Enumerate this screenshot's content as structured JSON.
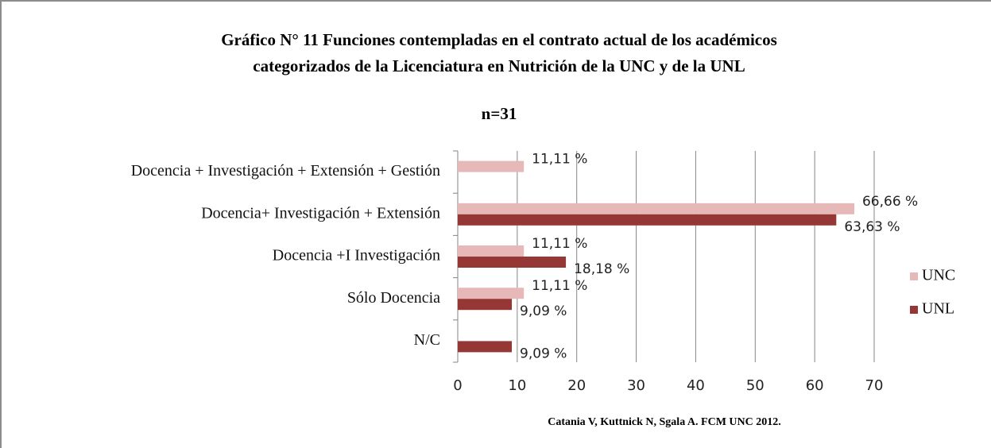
{
  "chart_data": {
    "type": "bar",
    "orientation": "horizontal",
    "title": [
      "Gráfico N° 11 Funciones contempladas en el contrato actual de los académicos",
      "categorizados de la Licenciatura en Nutrición de la UNC y de la UNL"
    ],
    "subtitle": "n=31",
    "annotation": "Catania V, Kuttnick N, Sgala A. FCM UNC 2012.",
    "categories": [
      "Docencia + Investigación + Extensión + Gestión",
      "Docencia+ Investigación + Extensión",
      "Docencia +I Investigación",
      "Sólo Docencia",
      "N/C"
    ],
    "series": [
      {
        "name": "UNC",
        "color": "#e6b8b7",
        "values": [
          11.11,
          66.66,
          11.11,
          11.11,
          null
        ],
        "value_labels": [
          "11,11 %",
          "66,66 %",
          "11,11 %",
          "11,11 %",
          null
        ]
      },
      {
        "name": "UNL",
        "color": "#953735",
        "values": [
          null,
          63.63,
          18.18,
          9.09,
          9.09
        ],
        "value_labels": [
          null,
          "63,63 %",
          "18,18 %",
          "9,09 %",
          "9,09 %"
        ]
      }
    ],
    "xlim": [
      0,
      70
    ],
    "xticks": [
      0,
      10,
      20,
      30,
      40,
      50,
      60,
      70
    ],
    "grid": true,
    "legend": "right"
  }
}
